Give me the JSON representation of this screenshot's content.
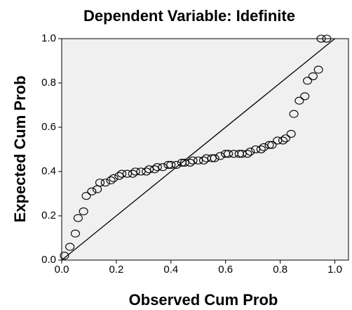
{
  "chart_data": {
    "type": "scatter",
    "title": "Dependent Variable: Idefinite",
    "x_label": "Observed Cum Prob",
    "y_label": "Expected Cum Prob",
    "x": [
      0.01,
      0.03,
      0.05,
      0.06,
      0.08,
      0.09,
      0.11,
      0.13,
      0.14,
      0.16,
      0.18,
      0.19,
      0.21,
      0.22,
      0.24,
      0.26,
      0.27,
      0.29,
      0.31,
      0.32,
      0.34,
      0.35,
      0.37,
      0.39,
      0.4,
      0.42,
      0.44,
      0.45,
      0.47,
      0.48,
      0.5,
      0.52,
      0.53,
      0.55,
      0.56,
      0.58,
      0.6,
      0.61,
      0.63,
      0.65,
      0.66,
      0.68,
      0.69,
      0.71,
      0.73,
      0.74,
      0.76,
      0.77,
      0.79,
      0.81,
      0.82,
      0.84,
      0.85,
      0.87,
      0.89,
      0.9,
      0.92,
      0.94,
      0.95,
      0.97
    ],
    "values": [
      0.02,
      0.06,
      0.12,
      0.19,
      0.22,
      0.29,
      0.31,
      0.32,
      0.35,
      0.35,
      0.36,
      0.37,
      0.38,
      0.39,
      0.39,
      0.39,
      0.4,
      0.4,
      0.4,
      0.41,
      0.41,
      0.42,
      0.42,
      0.43,
      0.43,
      0.43,
      0.44,
      0.44,
      0.44,
      0.45,
      0.45,
      0.45,
      0.46,
      0.46,
      0.46,
      0.47,
      0.48,
      0.48,
      0.48,
      0.48,
      0.48,
      0.48,
      0.49,
      0.5,
      0.5,
      0.51,
      0.52,
      0.52,
      0.54,
      0.54,
      0.55,
      0.57,
      0.66,
      0.72,
      0.74,
      0.81,
      0.83,
      0.86,
      1.0,
      1.0
    ],
    "marker_color": "#000000",
    "background": "#f0f0f0",
    "xlim": [
      0,
      1.05
    ],
    "ylim": [
      0,
      1.0
    ],
    "xticks": [
      {
        "value": 0,
        "label": "0.0"
      },
      0.2,
      0.4,
      0.6,
      0.8,
      {
        "value": 1,
        "label": "1.0"
      }
    ],
    "yticks": [
      {
        "value": 0,
        "label": "0.0"
      },
      0.2,
      0.4,
      0.6,
      0.8,
      {
        "value": 1,
        "label": "1.0"
      }
    ],
    "reference_line": true
  }
}
